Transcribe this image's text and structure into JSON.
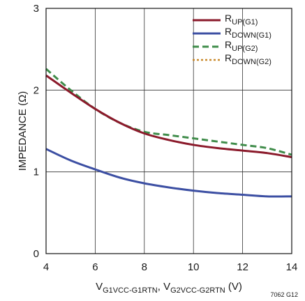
{
  "chart_data": {
    "type": "line",
    "xlabel": {
      "prefix": "V",
      "sub1": "G1VCC-G1RTN",
      "sep": ", V",
      "sub2": "G2VCC-G2RTN",
      "suffix": " (V)"
    },
    "ylabel": "IMPEDANCE (Ω)",
    "xlim": [
      4,
      14
    ],
    "ylim": [
      0,
      3
    ],
    "x_ticks": [
      "4",
      "6",
      "8",
      "10",
      "12",
      "14"
    ],
    "y_ticks": [
      "0",
      "1",
      "2",
      "3"
    ],
    "grid": true,
    "legend_position": "top-right",
    "series": [
      {
        "main": "R",
        "sub": "UP(G1)",
        "color": "#8b1a2b",
        "dash": "solid",
        "x": [
          4,
          5,
          6,
          7,
          8,
          9,
          10,
          11,
          12,
          13,
          14
        ],
        "y": [
          2.18,
          1.97,
          1.77,
          1.6,
          1.47,
          1.39,
          1.33,
          1.29,
          1.26,
          1.23,
          1.18
        ]
      },
      {
        "main": "R",
        "sub": "DOWN(G1)",
        "color": "#3c4fa3",
        "dash": "solid",
        "x": [
          4,
          5,
          6,
          7,
          8,
          9,
          10,
          11,
          12,
          13,
          14
        ],
        "y": [
          1.28,
          1.14,
          1.03,
          0.93,
          0.86,
          0.81,
          0.77,
          0.74,
          0.72,
          0.7,
          0.7
        ]
      },
      {
        "main": "R",
        "sub": "UP(G2)",
        "color": "#3f8c4a",
        "dash": "dashed",
        "x": [
          4,
          5,
          6,
          7,
          8,
          9,
          10,
          11,
          12,
          13,
          14
        ],
        "y": [
          2.26,
          2.0,
          1.77,
          1.6,
          1.49,
          1.45,
          1.41,
          1.37,
          1.33,
          1.29,
          1.21
        ]
      },
      {
        "main": "R",
        "sub": "DOWN(G2)",
        "color": "#c98a2e",
        "dash": "dotted",
        "x": [
          4,
          5,
          6,
          7,
          8,
          9,
          10,
          11,
          12,
          13,
          14
        ],
        "y": [
          1.28,
          1.14,
          1.03,
          0.93,
          0.86,
          0.81,
          0.77,
          0.74,
          0.72,
          0.7,
          0.7
        ]
      }
    ],
    "note": "7062 G12"
  }
}
